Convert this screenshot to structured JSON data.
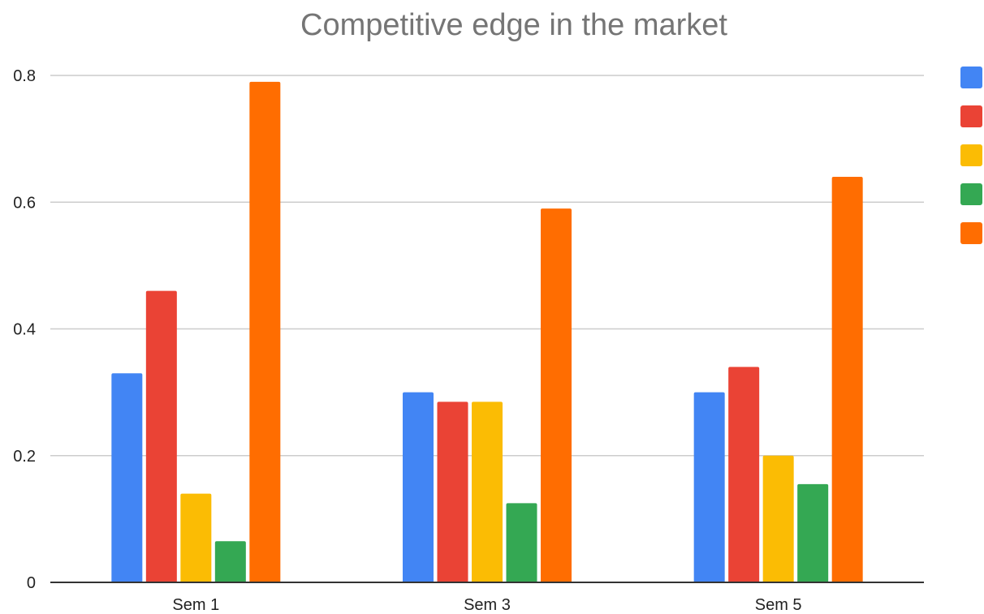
{
  "chart_data": {
    "type": "bar",
    "title": "Competitive edge in the market",
    "xlabel": "",
    "ylabel": "",
    "categories": [
      "Sem 1",
      "Sem 3",
      "Sem 5"
    ],
    "ylim": [
      0,
      0.8
    ],
    "yticks": [
      "0",
      "0.2",
      "0.4",
      "0.6",
      "0.8"
    ],
    "grid": true,
    "legend_position": "right",
    "series": [
      {
        "color": "#4285F4",
        "values": [
          0.33,
          0.3,
          0.3
        ]
      },
      {
        "color": "#EA4335",
        "values": [
          0.46,
          0.285,
          0.34
        ]
      },
      {
        "color": "#FBBC04",
        "values": [
          0.14,
          0.285,
          0.2
        ]
      },
      {
        "color": "#34A853",
        "values": [
          0.065,
          0.125,
          0.155
        ]
      },
      {
        "color": "#FF6D01",
        "values": [
          0.79,
          0.59,
          0.64
        ]
      }
    ]
  }
}
